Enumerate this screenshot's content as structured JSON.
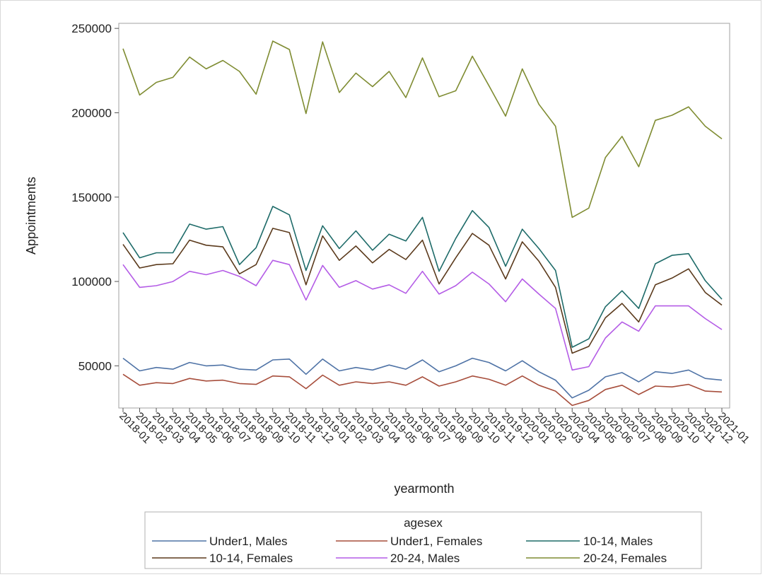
{
  "chart_data": {
    "type": "line",
    "title": "",
    "xlabel": "yearmonth",
    "ylabel": "Appointments",
    "ylim": [
      25000,
      253000
    ],
    "yticks": [
      50000,
      100000,
      150000,
      200000,
      250000
    ],
    "ytick_labels": [
      "50000",
      "100000",
      "150000",
      "200000",
      "250000"
    ],
    "grid": false,
    "legend_title": "agesex",
    "legend_position": "bottom",
    "x": [
      "2018-01",
      "2018-02",
      "2018-03",
      "2018-04",
      "2018-05",
      "2018-06",
      "2018-07",
      "2018-08",
      "2018-09",
      "2018-10",
      "2018-11",
      "2018-12",
      "2019-01",
      "2019-02",
      "2019-03",
      "2019-04",
      "2019-05",
      "2019-06",
      "2019-07",
      "2019-08",
      "2019-09",
      "2019-10",
      "2019-11",
      "2019-12",
      "2020-01",
      "2020-02",
      "2020-03",
      "2020-04",
      "2020-05",
      "2020-06",
      "2020-07",
      "2020-08",
      "2020-09",
      "2020-10",
      "2020-11",
      "2020-12",
      "2021-01"
    ],
    "series": [
      {
        "name": "Under1, Males",
        "color": "#4f73a6",
        "values": [
          54500,
          47000,
          49000,
          48000,
          52000,
          50000,
          50500,
          48000,
          47500,
          53500,
          54000,
          45000,
          54000,
          47000,
          49000,
          47500,
          50500,
          48000,
          53500,
          46500,
          50000,
          54500,
          52000,
          47000,
          53000,
          46500,
          41500,
          31000,
          35500,
          43500,
          46000,
          40500,
          46500,
          45500,
          47500,
          42500,
          41500
        ]
      },
      {
        "name": "Under1, Females",
        "color": "#a74e3c",
        "values": [
          45000,
          38500,
          40000,
          39500,
          42500,
          41000,
          41500,
          39500,
          39000,
          44000,
          43500,
          36500,
          44500,
          38500,
          40500,
          39500,
          40500,
          38500,
          43500,
          38000,
          40500,
          44000,
          42000,
          38500,
          44000,
          38500,
          35000,
          26500,
          29500,
          36000,
          38500,
          33000,
          38000,
          37500,
          39000,
          35000,
          34500
        ]
      },
      {
        "name": "10-14, Males",
        "color": "#1e6b69",
        "values": [
          129000,
          114000,
          117000,
          117000,
          134000,
          131000,
          132500,
          110000,
          120000,
          144500,
          139500,
          106500,
          133000,
          119500,
          130000,
          118500,
          128000,
          124000,
          138000,
          106000,
          125500,
          142000,
          132000,
          109000,
          131000,
          119500,
          106500,
          61000,
          66000,
          85000,
          94500,
          84000,
          110500,
          115500,
          116500,
          100500,
          89500
        ]
      },
      {
        "name": "10-14, Females",
        "color": "#5b3a1c",
        "values": [
          122000,
          108000,
          110000,
          110500,
          124500,
          121500,
          120500,
          104500,
          110000,
          131500,
          129000,
          98000,
          127000,
          112500,
          121000,
          111000,
          119000,
          113000,
          124500,
          98500,
          114000,
          128500,
          121500,
          101500,
          123500,
          112000,
          96500,
          57500,
          61500,
          78500,
          87000,
          76000,
          98000,
          102000,
          107500,
          93500,
          86000
        ]
      },
      {
        "name": "20-24, Males",
        "color": "#b45ce6",
        "values": [
          110000,
          96500,
          97500,
          100000,
          106000,
          104000,
          106500,
          103000,
          97500,
          112500,
          110000,
          89000,
          109500,
          96500,
          100500,
          95500,
          98000,
          93000,
          106000,
          92500,
          97500,
          105500,
          98500,
          88000,
          101500,
          92500,
          84000,
          47500,
          49500,
          66500,
          76000,
          70500,
          85500,
          85500,
          85500,
          78000,
          71500
        ]
      },
      {
        "name": "20-24, Females",
        "color": "#7f8c32",
        "values": [
          238000,
          210500,
          218000,
          221000,
          233000,
          226000,
          231000,
          224500,
          211000,
          242500,
          237500,
          199500,
          242000,
          212000,
          223500,
          215500,
          224500,
          209000,
          232500,
          209500,
          213000,
          233500,
          216000,
          198000,
          226000,
          205000,
          192000,
          138000,
          143500,
          173500,
          186000,
          168000,
          195500,
          198500,
          203500,
          192000,
          184500
        ]
      }
    ]
  }
}
